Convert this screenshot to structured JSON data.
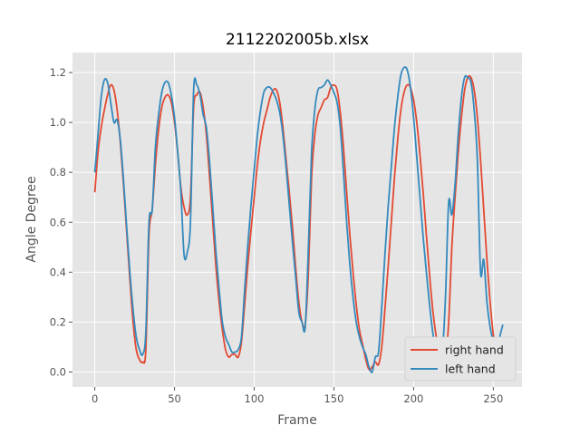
{
  "chart_data": {
    "type": "line",
    "title": "2112202005b.xlsx",
    "xlabel": "Frame",
    "ylabel": "Angle Degree",
    "xlim": [
      -14,
      268
    ],
    "ylim": [
      -0.06,
      1.28
    ],
    "xticks": [
      0,
      50,
      100,
      150,
      200,
      250
    ],
    "yticks": [
      0.0,
      0.2,
      0.4,
      0.6,
      0.8,
      1.0,
      1.2
    ],
    "grid": true,
    "legend_position": "lower-right",
    "series": [
      {
        "name": "right hand",
        "color": "#E24A33",
        "points": [
          [
            0,
            0.72
          ],
          [
            2,
            0.88
          ],
          [
            4,
            0.98
          ],
          [
            6,
            1.05
          ],
          [
            8,
            1.11
          ],
          [
            10,
            1.15
          ],
          [
            12,
            1.13
          ],
          [
            14,
            1.05
          ],
          [
            16,
            0.92
          ],
          [
            18,
            0.75
          ],
          [
            20,
            0.56
          ],
          [
            22,
            0.37
          ],
          [
            24,
            0.2
          ],
          [
            26,
            0.09
          ],
          [
            28,
            0.05
          ],
          [
            30,
            0.04
          ],
          [
            32,
            0.09
          ],
          [
            34,
            0.55
          ],
          [
            36,
            0.65
          ],
          [
            38,
            0.83
          ],
          [
            40,
            0.97
          ],
          [
            42,
            1.06
          ],
          [
            44,
            1.1
          ],
          [
            46,
            1.11
          ],
          [
            48,
            1.08
          ],
          [
            50,
            1.0
          ],
          [
            52,
            0.88
          ],
          [
            54,
            0.74
          ],
          [
            56,
            0.66
          ],
          [
            58,
            0.63
          ],
          [
            60,
            0.7
          ],
          [
            62,
            1.06
          ],
          [
            64,
            1.11
          ],
          [
            66,
            1.12
          ],
          [
            68,
            1.06
          ],
          [
            70,
            0.95
          ],
          [
            72,
            0.78
          ],
          [
            74,
            0.6
          ],
          [
            76,
            0.42
          ],
          [
            78,
            0.28
          ],
          [
            80,
            0.17
          ],
          [
            82,
            0.09
          ],
          [
            84,
            0.06
          ],
          [
            86,
            0.07
          ],
          [
            88,
            0.07
          ],
          [
            90,
            0.06
          ],
          [
            92,
            0.12
          ],
          [
            94,
            0.27
          ],
          [
            96,
            0.43
          ],
          [
            98,
            0.57
          ],
          [
            100,
            0.7
          ],
          [
            102,
            0.83
          ],
          [
            104,
            0.93
          ],
          [
            106,
            1.0
          ],
          [
            108,
            1.05
          ],
          [
            110,
            1.1
          ],
          [
            112,
            1.13
          ],
          [
            114,
            1.13
          ],
          [
            116,
            1.08
          ],
          [
            118,
            0.98
          ],
          [
            120,
            0.85
          ],
          [
            122,
            0.72
          ],
          [
            124,
            0.58
          ],
          [
            126,
            0.42
          ],
          [
            128,
            0.28
          ],
          [
            130,
            0.2
          ],
          [
            132,
            0.19
          ],
          [
            134,
            0.4
          ],
          [
            136,
            0.78
          ],
          [
            138,
            0.95
          ],
          [
            140,
            1.03
          ],
          [
            142,
            1.06
          ],
          [
            144,
            1.09
          ],
          [
            146,
            1.1
          ],
          [
            148,
            1.14
          ],
          [
            150,
            1.15
          ],
          [
            152,
            1.13
          ],
          [
            154,
            1.04
          ],
          [
            156,
            0.9
          ],
          [
            158,
            0.72
          ],
          [
            160,
            0.55
          ],
          [
            162,
            0.4
          ],
          [
            164,
            0.27
          ],
          [
            166,
            0.17
          ],
          [
            168,
            0.11
          ],
          [
            170,
            0.05
          ],
          [
            172,
            0.01
          ],
          [
            174,
            0.02
          ],
          [
            176,
            0.04
          ],
          [
            178,
            0.03
          ],
          [
            180,
            0.1
          ],
          [
            182,
            0.25
          ],
          [
            184,
            0.42
          ],
          [
            186,
            0.6
          ],
          [
            188,
            0.78
          ],
          [
            190,
            0.93
          ],
          [
            192,
            1.05
          ],
          [
            194,
            1.12
          ],
          [
            196,
            1.15
          ],
          [
            198,
            1.14
          ],
          [
            200,
            1.09
          ],
          [
            202,
            1.0
          ],
          [
            204,
            0.87
          ],
          [
            206,
            0.72
          ],
          [
            208,
            0.55
          ],
          [
            210,
            0.39
          ],
          [
            212,
            0.25
          ],
          [
            214,
            0.15
          ],
          [
            216,
            0.08
          ],
          [
            218,
            0.05
          ],
          [
            220,
            0.06
          ],
          [
            222,
            0.2
          ],
          [
            224,
            0.5
          ],
          [
            226,
            0.7
          ],
          [
            228,
            0.88
          ],
          [
            230,
            1.02
          ],
          [
            232,
            1.13
          ],
          [
            234,
            1.18
          ],
          [
            236,
            1.18
          ],
          [
            238,
            1.13
          ],
          [
            240,
            1.02
          ],
          [
            242,
            0.85
          ],
          [
            244,
            0.65
          ],
          [
            246,
            0.45
          ],
          [
            248,
            0.28
          ],
          [
            250,
            0.15
          ],
          [
            252,
            0.08
          ],
          [
            254,
            0.07
          ],
          [
            256,
            0.08
          ]
        ]
      },
      {
        "name": "left hand",
        "color": "#348ABD",
        "points": [
          [
            0,
            0.8
          ],
          [
            2,
            0.95
          ],
          [
            4,
            1.1
          ],
          [
            6,
            1.17
          ],
          [
            8,
            1.16
          ],
          [
            10,
            1.08
          ],
          [
            12,
            1.0
          ],
          [
            14,
            1.01
          ],
          [
            16,
            0.93
          ],
          [
            18,
            0.77
          ],
          [
            20,
            0.58
          ],
          [
            22,
            0.4
          ],
          [
            24,
            0.25
          ],
          [
            26,
            0.14
          ],
          [
            28,
            0.09
          ],
          [
            30,
            0.07
          ],
          [
            32,
            0.16
          ],
          [
            34,
            0.6
          ],
          [
            36,
            0.65
          ],
          [
            38,
            0.9
          ],
          [
            40,
            1.03
          ],
          [
            42,
            1.12
          ],
          [
            44,
            1.16
          ],
          [
            46,
            1.16
          ],
          [
            48,
            1.11
          ],
          [
            50,
            1.02
          ],
          [
            52,
            0.88
          ],
          [
            54,
            0.72
          ],
          [
            56,
            0.47
          ],
          [
            58,
            0.48
          ],
          [
            60,
            0.6
          ],
          [
            62,
            1.13
          ],
          [
            64,
            1.15
          ],
          [
            66,
            1.11
          ],
          [
            68,
            1.03
          ],
          [
            70,
            0.98
          ],
          [
            72,
            0.84
          ],
          [
            74,
            0.66
          ],
          [
            76,
            0.48
          ],
          [
            78,
            0.33
          ],
          [
            80,
            0.2
          ],
          [
            82,
            0.14
          ],
          [
            84,
            0.11
          ],
          [
            86,
            0.08
          ],
          [
            88,
            0.08
          ],
          [
            90,
            0.09
          ],
          [
            92,
            0.14
          ],
          [
            94,
            0.33
          ],
          [
            96,
            0.51
          ],
          [
            98,
            0.67
          ],
          [
            100,
            0.81
          ],
          [
            102,
            0.95
          ],
          [
            104,
            1.05
          ],
          [
            106,
            1.12
          ],
          [
            108,
            1.14
          ],
          [
            110,
            1.14
          ],
          [
            112,
            1.12
          ],
          [
            114,
            1.09
          ],
          [
            116,
            1.04
          ],
          [
            118,
            0.95
          ],
          [
            120,
            0.82
          ],
          [
            122,
            0.67
          ],
          [
            124,
            0.52
          ],
          [
            126,
            0.38
          ],
          [
            128,
            0.24
          ],
          [
            130,
            0.2
          ],
          [
            132,
            0.18
          ],
          [
            134,
            0.5
          ],
          [
            136,
            0.88
          ],
          [
            138,
            1.05
          ],
          [
            140,
            1.13
          ],
          [
            142,
            1.14
          ],
          [
            144,
            1.15
          ],
          [
            146,
            1.17
          ],
          [
            148,
            1.15
          ],
          [
            150,
            1.12
          ],
          [
            152,
            1.08
          ],
          [
            154,
            0.98
          ],
          [
            156,
            0.8
          ],
          [
            158,
            0.6
          ],
          [
            160,
            0.43
          ],
          [
            162,
            0.3
          ],
          [
            164,
            0.2
          ],
          [
            166,
            0.14
          ],
          [
            168,
            0.1
          ],
          [
            170,
            0.07
          ],
          [
            172,
            0.02
          ],
          [
            174,
            0.0
          ],
          [
            176,
            0.06
          ],
          [
            178,
            0.08
          ],
          [
            180,
            0.26
          ],
          [
            182,
            0.47
          ],
          [
            184,
            0.66
          ],
          [
            186,
            0.82
          ],
          [
            188,
            0.98
          ],
          [
            190,
            1.1
          ],
          [
            192,
            1.19
          ],
          [
            194,
            1.22
          ],
          [
            196,
            1.21
          ],
          [
            198,
            1.14
          ],
          [
            200,
            1.02
          ],
          [
            202,
            0.86
          ],
          [
            204,
            0.7
          ],
          [
            206,
            0.54
          ],
          [
            208,
            0.4
          ],
          [
            210,
            0.27
          ],
          [
            212,
            0.16
          ],
          [
            214,
            0.09
          ],
          [
            216,
            0.06
          ],
          [
            218,
            0.08
          ],
          [
            220,
            0.3
          ],
          [
            222,
            0.68
          ],
          [
            224,
            0.63
          ],
          [
            226,
            0.75
          ],
          [
            228,
            0.95
          ],
          [
            230,
            1.1
          ],
          [
            232,
            1.18
          ],
          [
            234,
            1.18
          ],
          [
            236,
            1.16
          ],
          [
            238,
            1.05
          ],
          [
            240,
            0.85
          ],
          [
            242,
            0.4
          ],
          [
            244,
            0.45
          ],
          [
            246,
            0.28
          ],
          [
            248,
            0.18
          ],
          [
            250,
            0.12
          ],
          [
            252,
            0.08
          ],
          [
            254,
            0.14
          ],
          [
            256,
            0.19
          ]
        ]
      }
    ]
  }
}
